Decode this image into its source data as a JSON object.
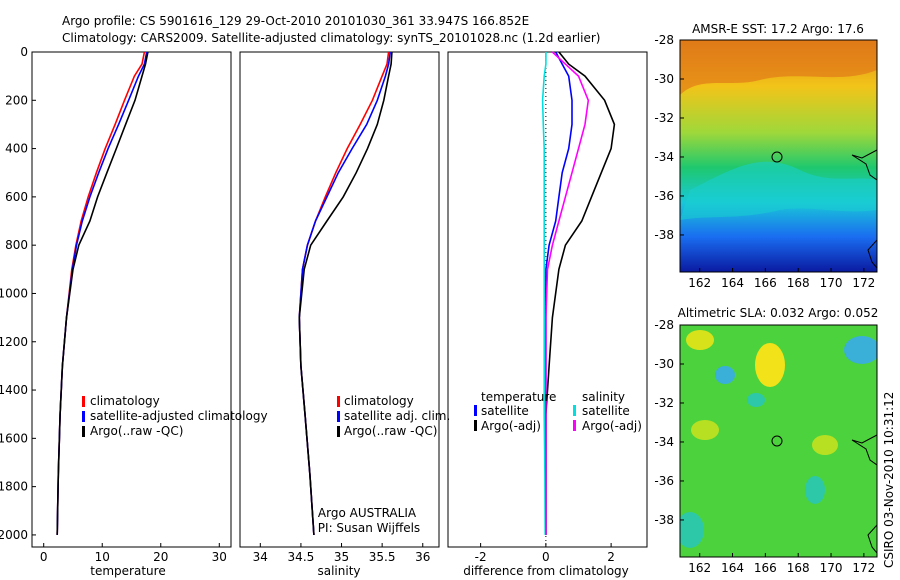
{
  "header": {
    "line1": "Argo profile: CS 5901616_129 29-Oct-2010 20101030_361 33.947S 166.852E",
    "line2": "Climatology: CARS2009. Satellite-adjusted climatology: synTS_20101028.nc (1.2d earlier)"
  },
  "credit": "CSIRO 03-Nov-2010 10:31:12",
  "colors": {
    "climatology": "#ff0000",
    "satellite": "#0000ff",
    "argo": "#000000",
    "sat_salinity": "#00e0e0",
    "argo_salinity": "#ff00ff"
  },
  "chart_data": [
    {
      "id": "temperature",
      "type": "line",
      "xlabel": "temperature",
      "ylabel": "",
      "xlim": [
        -2,
        32
      ],
      "ylim": [
        2050,
        0
      ],
      "xticks": [
        "0",
        "10",
        "20",
        "30"
      ],
      "yticks": [
        "0",
        "200",
        "400",
        "600",
        "800",
        "1000",
        "1200",
        "1400",
        "1600",
        "1800",
        "2000"
      ],
      "legend": [
        "climatology",
        "satellite-adjusted climatology",
        "Argo(..raw -QC)"
      ],
      "legend_position": "lower-right",
      "series": [
        {
          "name": "climatology",
          "color": "#ff0000",
          "x": [
            17.2,
            16.8,
            15.5,
            13.8,
            12.2,
            10.5,
            9.0,
            7.6,
            6.4,
            5.5,
            4.8,
            3.9,
            3.2,
            2.8,
            2.5,
            2.3
          ],
          "y": [
            0,
            50,
            100,
            200,
            300,
            400,
            500,
            600,
            700,
            800,
            900,
            1100,
            1300,
            1500,
            1750,
            2000
          ]
        },
        {
          "name": "satellite-adjusted climatology",
          "color": "#0000ff",
          "x": [
            17.6,
            17.2,
            16.2,
            14.5,
            12.8,
            11.0,
            9.4,
            7.9,
            6.6,
            5.6,
            4.9,
            3.9,
            3.2,
            2.8,
            2.5,
            2.3
          ],
          "y": [
            0,
            50,
            100,
            200,
            300,
            400,
            500,
            600,
            700,
            800,
            900,
            1100,
            1300,
            1500,
            1750,
            2000
          ]
        },
        {
          "name": "Argo(..raw -QC)",
          "color": "#000000",
          "x": [
            17.8,
            17.4,
            16.8,
            15.6,
            14.0,
            12.4,
            10.8,
            9.2,
            7.9,
            6.0,
            5.0,
            3.9,
            3.2,
            2.8,
            2.5,
            2.3
          ],
          "y": [
            0,
            50,
            100,
            200,
            300,
            400,
            500,
            600,
            700,
            800,
            900,
            1100,
            1300,
            1500,
            1750,
            2000
          ]
        }
      ]
    },
    {
      "id": "salinity",
      "type": "line",
      "xlabel": "salinity",
      "ylabel": "",
      "xlim": [
        33.75,
        36.2
      ],
      "ylim": [
        2050,
        0
      ],
      "xticks": [
        "34",
        "34.5",
        "35",
        "35.5",
        "36"
      ],
      "legend": [
        "climatology",
        "satellite adj. clim.",
        "Argo(..raw -QC)"
      ],
      "legend_position": "lower-right",
      "annotations": [
        "Argo AUSTRALIA",
        "PI: Susan Wijffels"
      ],
      "series": [
        {
          "name": "climatology",
          "color": "#ff0000",
          "x": [
            35.58,
            35.56,
            35.5,
            35.38,
            35.23,
            35.07,
            34.93,
            34.8,
            34.68,
            34.58,
            34.52,
            34.48,
            34.5,
            34.55,
            34.61,
            34.66
          ],
          "y": [
            0,
            50,
            100,
            200,
            300,
            400,
            500,
            600,
            700,
            800,
            900,
            1100,
            1300,
            1500,
            1750,
            2000
          ]
        },
        {
          "name": "satellite adj. clim.",
          "color": "#0000ff",
          "x": [
            35.6,
            35.58,
            35.54,
            35.44,
            35.31,
            35.13,
            34.96,
            34.82,
            34.68,
            34.58,
            34.52,
            34.48,
            34.5,
            34.55,
            34.61,
            34.66
          ],
          "y": [
            0,
            50,
            100,
            200,
            300,
            400,
            500,
            600,
            700,
            800,
            900,
            1100,
            1300,
            1500,
            1750,
            2000
          ]
        },
        {
          "name": "Argo(..raw -QC)",
          "color": "#000000",
          "x": [
            35.62,
            35.61,
            35.58,
            35.52,
            35.44,
            35.32,
            35.18,
            35.02,
            34.82,
            34.62,
            34.54,
            34.48,
            34.5,
            34.55,
            34.61,
            34.66
          ],
          "y": [
            0,
            50,
            100,
            200,
            300,
            400,
            500,
            600,
            700,
            800,
            900,
            1100,
            1300,
            1500,
            1750,
            2000
          ]
        }
      ]
    },
    {
      "id": "difference",
      "type": "line",
      "xlabel": "difference from climatology",
      "ylabel": "",
      "xlim": [
        -3,
        3.1
      ],
      "ylim": [
        2050,
        0
      ],
      "xticks": [
        "-2",
        "0",
        "2"
      ],
      "legend_left": {
        "title": "temperature",
        "items": [
          "satellite",
          "Argo(-adj)"
        ]
      },
      "legend_right": {
        "title": "salinity",
        "items": [
          "satellite",
          "Argo(-adj)"
        ]
      },
      "legend_position": "lower-center",
      "series": [
        {
          "name": "satellite (temperature)",
          "color": "#0000ff",
          "x": [
            0.3,
            0.5,
            0.7,
            0.8,
            0.8,
            0.7,
            0.5,
            0.4,
            0.3,
            0.1,
            0.0,
            0.0,
            0.0,
            0.0,
            0.0,
            0.0
          ],
          "y": [
            0,
            50,
            100,
            200,
            300,
            400,
            500,
            600,
            700,
            800,
            900,
            1100,
            1300,
            1500,
            1750,
            2000
          ]
        },
        {
          "name": "Argo(-adj) (temperature)",
          "color": "#000000",
          "x": [
            0.4,
            0.7,
            1.2,
            1.8,
            2.1,
            2.0,
            1.7,
            1.4,
            1.1,
            0.6,
            0.4,
            0.2,
            0.1,
            0.0,
            0.0,
            0.0
          ],
          "y": [
            0,
            50,
            100,
            200,
            300,
            400,
            500,
            600,
            700,
            800,
            900,
            1100,
            1300,
            1500,
            1750,
            2000
          ]
        },
        {
          "name": "satellite (salinity)",
          "color": "#00e0e0",
          "x": [
            0.0,
            0.0,
            -0.05,
            -0.1,
            -0.08,
            -0.05,
            -0.05,
            -0.05,
            -0.05,
            -0.05,
            -0.05,
            -0.05,
            -0.05,
            -0.05,
            -0.03,
            -0.02
          ],
          "y": [
            0,
            50,
            100,
            200,
            300,
            400,
            500,
            600,
            700,
            800,
            900,
            1100,
            1300,
            1500,
            1750,
            2000
          ]
        },
        {
          "name": "Argo(-adj) (salinity)",
          "color": "#ff00ff",
          "x": [
            0.2,
            0.6,
            1.0,
            1.3,
            1.2,
            1.0,
            0.8,
            0.6,
            0.4,
            0.2,
            0.05,
            0.0,
            0.0,
            0.0,
            0.0,
            0.0
          ],
          "y": [
            0,
            50,
            100,
            200,
            300,
            400,
            500,
            600,
            700,
            800,
            900,
            1100,
            1300,
            1500,
            1750,
            2000
          ]
        }
      ]
    },
    {
      "id": "sst_map",
      "type": "heatmap",
      "title": "AMSR-E SST: 17.2  Argo: 17.6",
      "xticks": [
        "162",
        "164",
        "166",
        "168",
        "170",
        "172"
      ],
      "yticks": [
        "-28",
        "-30",
        "-32",
        "-34",
        "-36",
        "-38"
      ],
      "xlim": [
        160.8,
        172.8
      ],
      "ylim": [
        -39.9,
        -28
      ],
      "marker": {
        "lon": 166.85,
        "lat": -33.95
      }
    },
    {
      "id": "sla_map",
      "type": "heatmap",
      "title": "Altimetric SLA: 0.032  Argo: 0.052",
      "xticks": [
        "162",
        "164",
        "166",
        "168",
        "170",
        "172"
      ],
      "yticks": [
        "-28",
        "-30",
        "-32",
        "-34",
        "-36",
        "-38"
      ],
      "xlim": [
        160.8,
        172.8
      ],
      "ylim": [
        -39.9,
        -28
      ],
      "marker": {
        "lon": 166.85,
        "lat": -33.95
      }
    }
  ]
}
